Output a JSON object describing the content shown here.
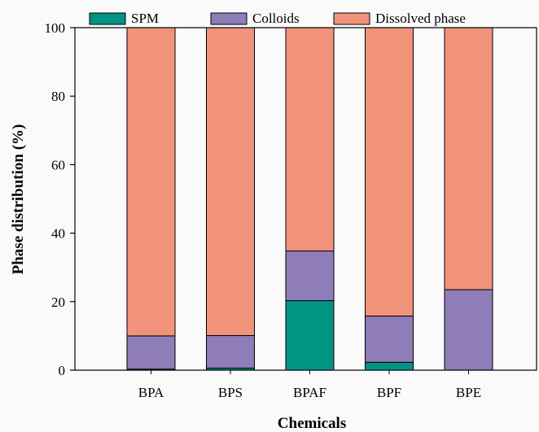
{
  "chart_data": {
    "type": "bar",
    "stacked": true,
    "categories": [
      "BPA",
      "BPS",
      "BPAF",
      "BPF",
      "BPE"
    ],
    "series": [
      {
        "name": "SPM",
        "color": "#009485",
        "values": [
          0.3,
          0.6,
          20.3,
          2.3,
          0.0
        ]
      },
      {
        "name": "Colloids",
        "color": "#8e7db8",
        "values": [
          9.7,
          9.5,
          14.5,
          13.5,
          23.5
        ]
      },
      {
        "name": "Dissolved phase",
        "color": "#f0937a",
        "values": [
          90.0,
          89.9,
          65.2,
          84.2,
          76.5
        ]
      }
    ],
    "xlabel": "Chemicals",
    "ylabel": "Phase distribution (%)",
    "ylim": [
      0,
      100
    ],
    "yticks": [
      0,
      20,
      40,
      60,
      80,
      100
    ],
    "grid": false,
    "legend_position": "top"
  }
}
